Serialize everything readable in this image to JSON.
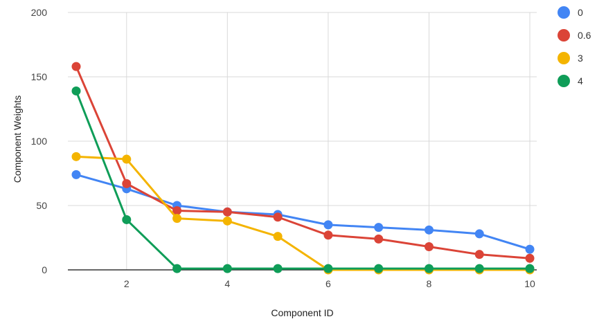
{
  "chart_data": {
    "type": "line",
    "xlabel": "Component ID",
    "ylabel": "Component Weights",
    "xlim": [
      1,
      10
    ],
    "ylim": [
      0,
      200
    ],
    "x_ticks": [
      2,
      4,
      6,
      8,
      10
    ],
    "y_ticks": [
      0,
      50,
      100,
      150,
      200
    ],
    "grid": true,
    "legend_position": "right",
    "x": [
      1,
      2,
      3,
      4,
      5,
      6,
      7,
      8,
      9,
      10
    ],
    "series": [
      {
        "name": "0",
        "color": "#4285F4",
        "values": [
          74,
          63,
          50,
          45,
          43,
          35,
          33,
          31,
          28,
          16
        ]
      },
      {
        "name": "0.6",
        "color": "#DB4437",
        "values": [
          158,
          67,
          46,
          45,
          41,
          27,
          24,
          18,
          12,
          9
        ]
      },
      {
        "name": "3",
        "color": "#F4B400",
        "values": [
          88,
          86,
          40,
          38,
          26,
          0,
          0,
          0,
          0,
          0
        ]
      },
      {
        "name": "4",
        "color": "#0F9D58",
        "values": [
          139,
          39,
          1,
          1,
          1,
          1,
          1,
          1,
          1,
          1
        ]
      }
    ]
  }
}
